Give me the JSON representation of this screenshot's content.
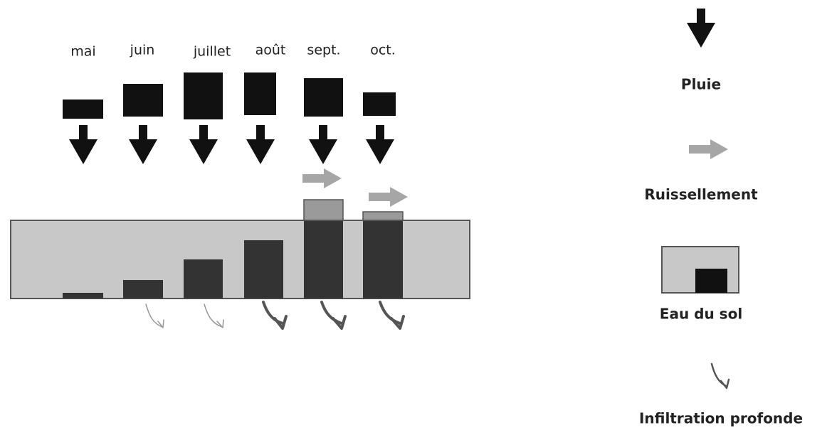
{
  "months": [
    "mai",
    "juin",
    "juillet",
    "août",
    "sept.",
    "oct."
  ],
  "legend": [
    "Pluie",
    "Ruissellement",
    "Eau du sol",
    "Infiltration profonde"
  ]
}
